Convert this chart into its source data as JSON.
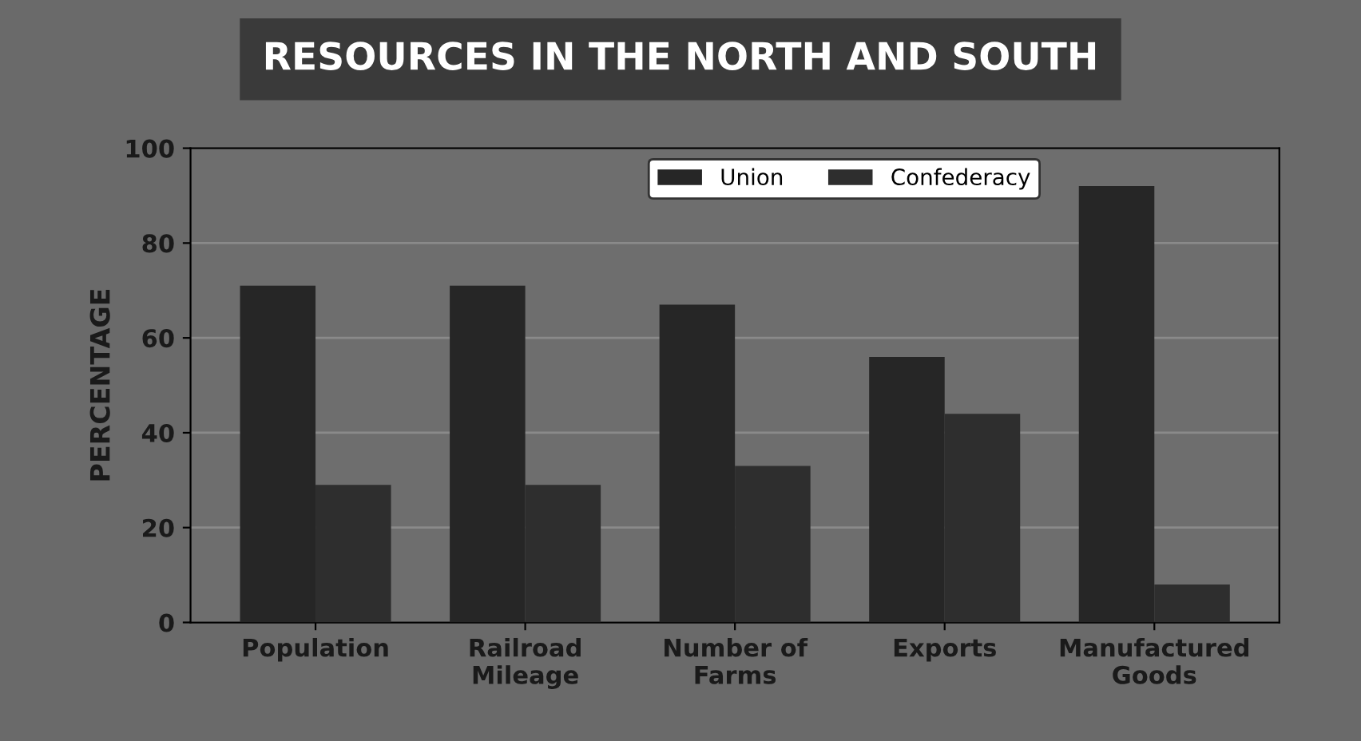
{
  "chart_data": {
    "type": "bar",
    "title": "RESOURCES IN THE NORTH AND SOUTH",
    "ylabel": "PERCENTAGE",
    "categories": [
      "Population",
      "Railroad\nMileage",
      "Number of\nFarms",
      "Exports",
      "Manufactured\nGoods"
    ],
    "series": [
      {
        "name": "Union",
        "color": "#262626",
        "values": [
          71,
          71,
          67,
          56,
          92
        ]
      },
      {
        "name": "Confederacy",
        "color": "#2e2e2e",
        "values": [
          29,
          29,
          33,
          44,
          8
        ]
      }
    ],
    "ylim": [
      0,
      100
    ],
    "yticks": [
      0,
      20,
      40,
      60,
      80,
      100
    ],
    "grid": "y",
    "legend": "top right"
  }
}
